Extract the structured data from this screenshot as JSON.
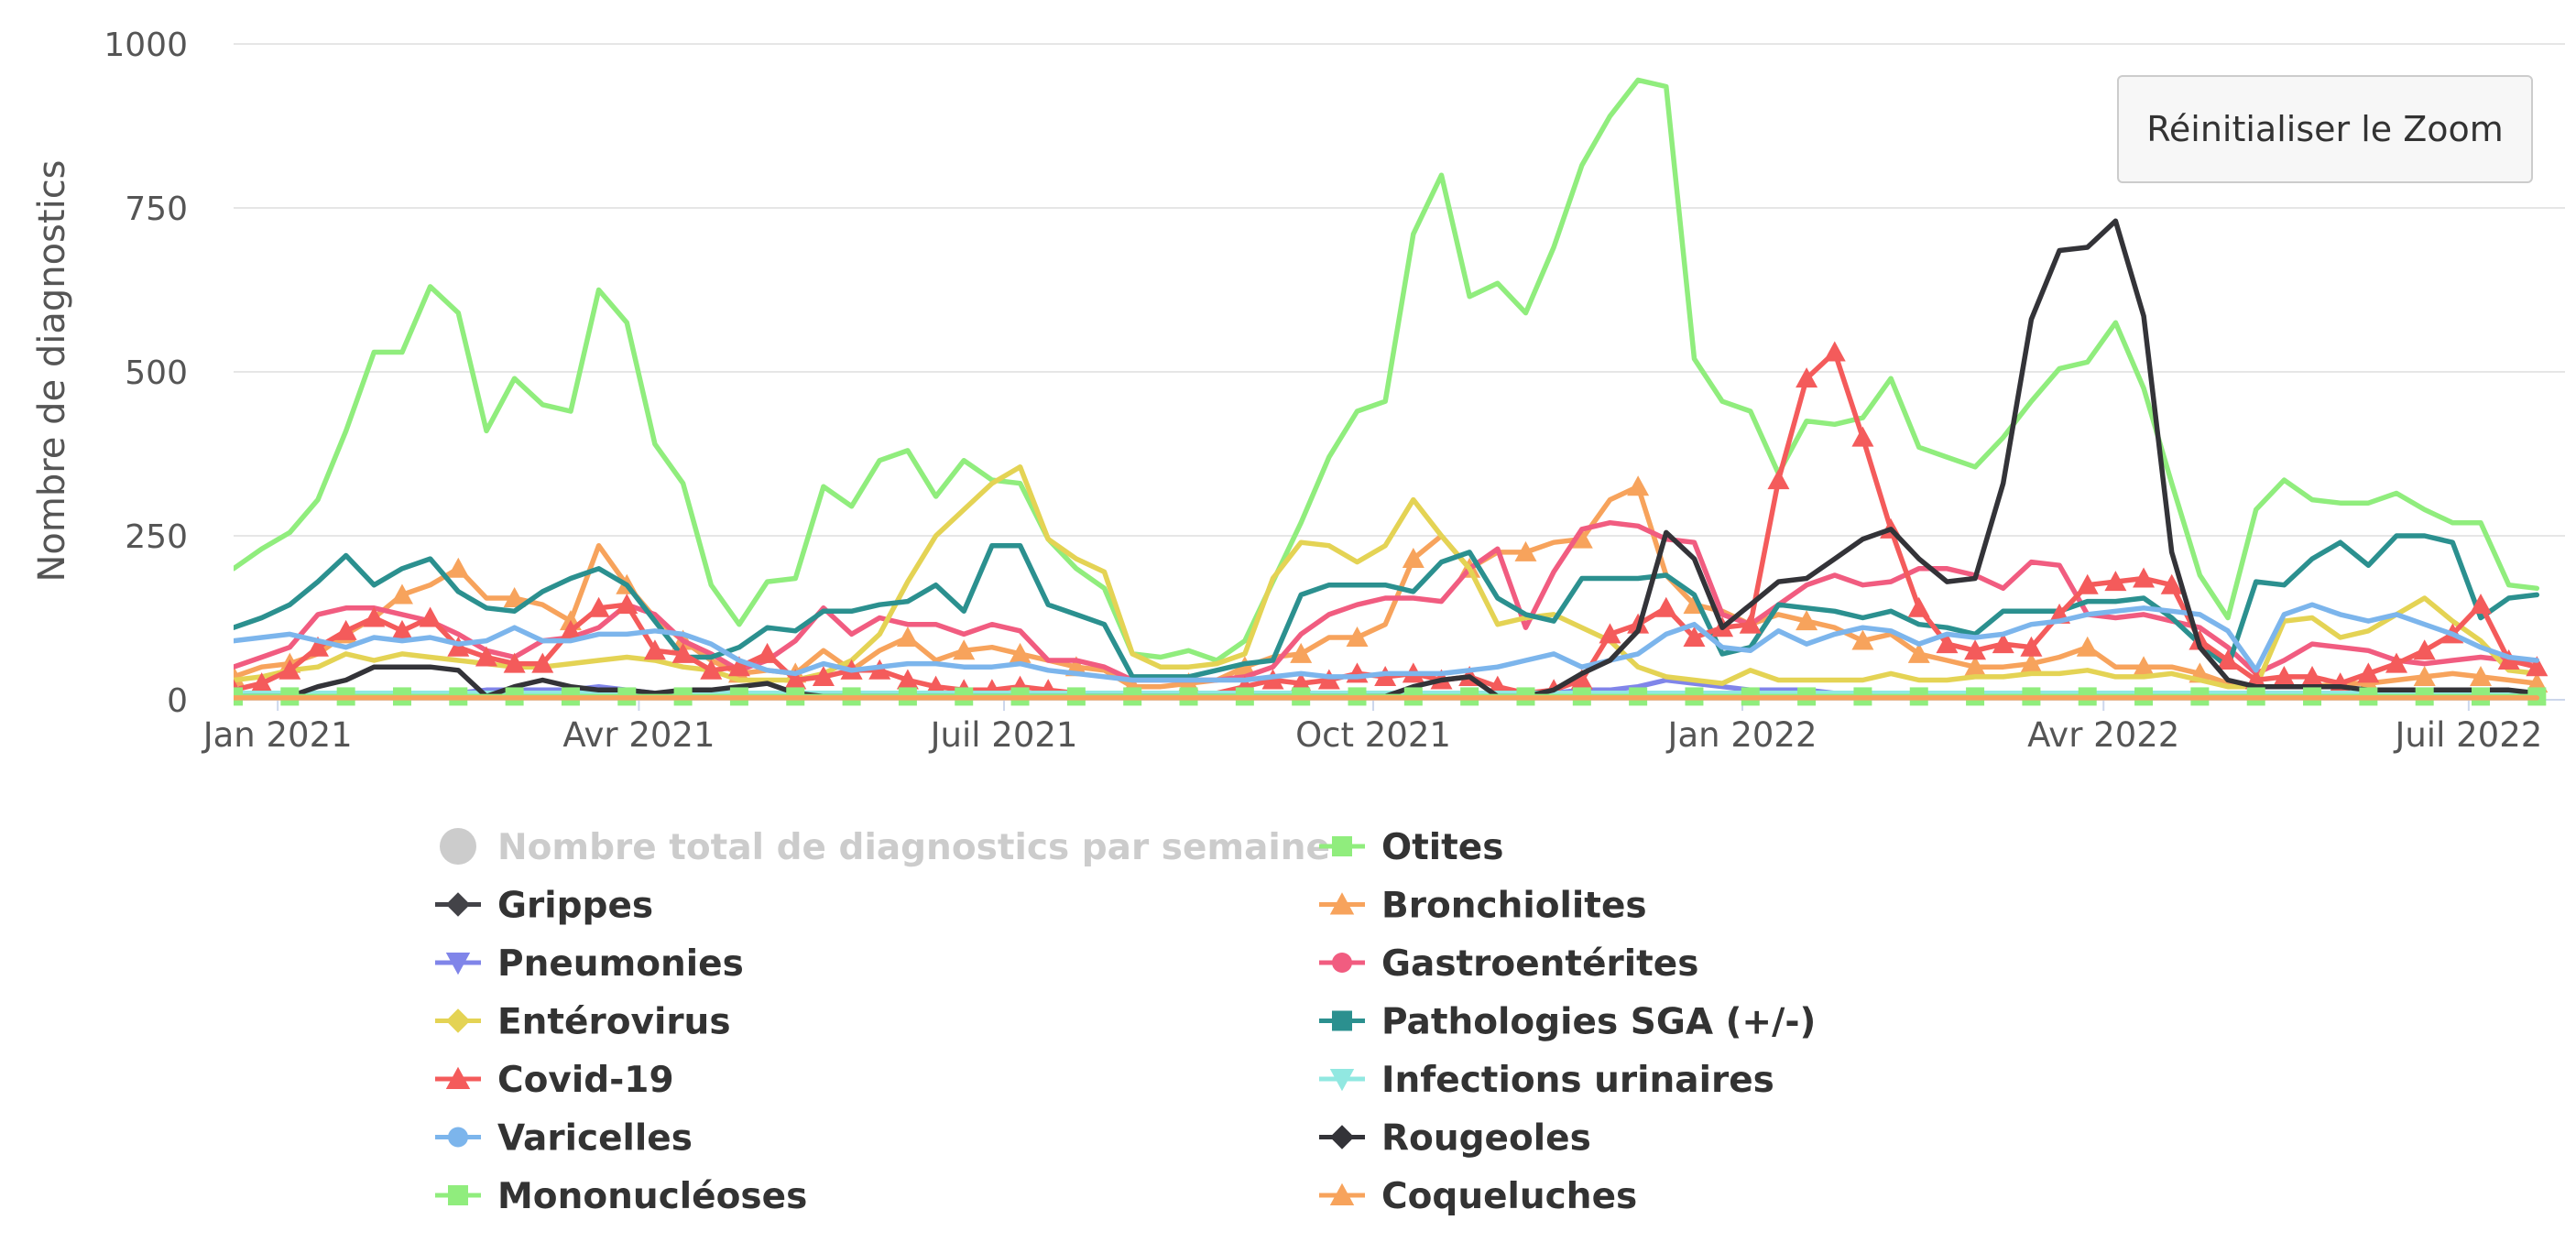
{
  "chart_data": {
    "type": "line",
    "title": "",
    "xlabel": "",
    "ylabel": "Nombre de diagnostics",
    "ylim": [
      0,
      1000
    ],
    "yticks": [
      "0",
      "250",
      "500",
      "750",
      "1000"
    ],
    "xlim": [
      "2020-12-21",
      "2022-07-25"
    ],
    "xticks": [
      {
        "date": "2021-01-01",
        "label": "Jan 2021"
      },
      {
        "date": "2021-04-01",
        "label": "Avr 2021"
      },
      {
        "date": "2021-07-01",
        "label": "Juil 2021"
      },
      {
        "date": "2021-10-01",
        "label": "Oct 2021"
      },
      {
        "date": "2022-01-01",
        "label": "Jan 2022"
      },
      {
        "date": "2022-04-01",
        "label": "Avr 2022"
      },
      {
        "date": "2022-07-01",
        "label": "Juil 2022"
      }
    ],
    "start_date": "2020-12-21",
    "week_step_days": 7,
    "series": [
      {
        "name": "Nombre total de diagnostics par semaine",
        "color": "#cccccc",
        "marker": "circle",
        "visible": false,
        "values": []
      },
      {
        "name": "Otites",
        "color": "#90ed7d",
        "marker": "square",
        "visible": true,
        "values": [
          200,
          230,
          255,
          305,
          410,
          530,
          530,
          630,
          590,
          410,
          490,
          450,
          440,
          625,
          575,
          390,
          330,
          175,
          115,
          180,
          185,
          325,
          295,
          365,
          380,
          310,
          365,
          335,
          330,
          245,
          200,
          170,
          70,
          65,
          75,
          60,
          90,
          180,
          270,
          370,
          440,
          455,
          710,
          800,
          615,
          635,
          590,
          690,
          815,
          890,
          945,
          935,
          520,
          455,
          440,
          345,
          425,
          420,
          430,
          490,
          385,
          370,
          355,
          400,
          455,
          505,
          515,
          575,
          475,
          330,
          190,
          125,
          290,
          335,
          305,
          300,
          300,
          315,
          290,
          270,
          270,
          175,
          170
        ]
      },
      {
        "name": "Grippes",
        "color": "#434348",
        "marker": "diamond",
        "visible": true,
        "values": [
          5,
          5,
          5,
          5,
          5,
          5,
          5,
          5,
          5,
          5,
          5,
          5,
          5,
          5,
          5,
          5,
          5,
          5,
          5,
          5,
          5,
          5,
          5,
          5,
          5,
          5,
          5,
          5,
          5,
          5,
          5,
          5,
          5,
          5,
          5,
          5,
          5,
          5,
          5,
          5,
          5,
          5,
          5,
          5,
          5,
          5,
          5,
          5,
          5,
          5,
          5,
          5,
          5,
          5,
          5,
          5,
          5,
          5,
          5,
          5,
          5,
          5,
          5,
          5,
          5,
          5,
          5,
          5,
          5,
          5,
          5,
          5,
          5,
          5,
          5,
          5,
          5,
          5,
          5,
          5,
          5,
          5,
          5
        ]
      },
      {
        "name": "Bronchiolites",
        "color": "#f7a35c",
        "marker": "triangle",
        "visible": true,
        "values": [
          35,
          50,
          55,
          70,
          100,
          125,
          160,
          175,
          200,
          155,
          155,
          145,
          120,
          235,
          175,
          125,
          90,
          60,
          40,
          45,
          40,
          75,
          45,
          75,
          95,
          60,
          75,
          80,
          70,
          60,
          50,
          45,
          20,
          20,
          25,
          30,
          50,
          65,
          70,
          95,
          95,
          115,
          215,
          250,
          200,
          225,
          225,
          240,
          245,
          305,
          325,
          190,
          145,
          135,
          115,
          130,
          120,
          110,
          90,
          100,
          70,
          60,
          50,
          50,
          55,
          65,
          80,
          50,
          50,
          50,
          40,
          25,
          20,
          20,
          20,
          25,
          25,
          30,
          35,
          40,
          35,
          30,
          25
        ]
      },
      {
        "name": "Pneumonies",
        "color": "#8085e9",
        "marker": "triangle-down",
        "visible": true,
        "values": [
          10,
          10,
          10,
          10,
          10,
          10,
          10,
          10,
          10,
          15,
          15,
          15,
          15,
          20,
          15,
          10,
          10,
          5,
          5,
          5,
          5,
          5,
          5,
          5,
          5,
          5,
          5,
          5,
          5,
          5,
          5,
          5,
          5,
          5,
          5,
          5,
          5,
          5,
          5,
          10,
          10,
          10,
          10,
          10,
          10,
          10,
          10,
          10,
          15,
          15,
          20,
          30,
          25,
          20,
          15,
          15,
          15,
          10,
          10,
          10,
          10,
          10,
          10,
          10,
          10,
          10,
          10,
          10,
          10,
          10,
          10,
          5,
          5,
          5,
          5,
          5,
          5,
          5,
          5,
          5,
          5,
          5,
          5
        ]
      },
      {
        "name": "Gastroentérites",
        "color": "#f15c80",
        "marker": "circle",
        "visible": true,
        "values": [
          50,
          65,
          80,
          130,
          140,
          140,
          130,
          120,
          100,
          75,
          65,
          90,
          95,
          110,
          145,
          130,
          90,
          70,
          45,
          60,
          90,
          140,
          100,
          125,
          115,
          115,
          100,
          115,
          105,
          60,
          60,
          50,
          30,
          30,
          30,
          30,
          35,
          50,
          100,
          130,
          145,
          155,
          155,
          150,
          200,
          230,
          110,
          195,
          260,
          270,
          265,
          245,
          240,
          130,
          115,
          145,
          175,
          190,
          175,
          180,
          200,
          200,
          190,
          170,
          210,
          205,
          130,
          125,
          130,
          120,
          110,
          80,
          40,
          60,
          85,
          80,
          75,
          60,
          55,
          60,
          65,
          60,
          60
        ]
      },
      {
        "name": "Entérovirus",
        "color": "#e4d354",
        "marker": "diamond",
        "visible": true,
        "values": [
          30,
          35,
          45,
          50,
          70,
          60,
          70,
          65,
          60,
          55,
          50,
          50,
          55,
          60,
          65,
          60,
          50,
          45,
          30,
          30,
          30,
          40,
          60,
          100,
          180,
          250,
          290,
          330,
          355,
          245,
          215,
          195,
          70,
          50,
          50,
          55,
          70,
          185,
          240,
          235,
          210,
          235,
          305,
          250,
          200,
          115,
          125,
          130,
          110,
          90,
          50,
          35,
          30,
          25,
          45,
          30,
          30,
          30,
          30,
          40,
          30,
          30,
          35,
          35,
          40,
          40,
          45,
          35,
          35,
          40,
          30,
          20,
          20,
          120,
          125,
          95,
          105,
          130,
          155,
          120,
          90,
          45,
          40
        ]
      },
      {
        "name": "Pathologies SGA (+/-)",
        "color": "#2b908f",
        "marker": "square",
        "visible": true,
        "values": [
          110,
          125,
          145,
          180,
          220,
          175,
          200,
          215,
          165,
          140,
          135,
          165,
          185,
          200,
          175,
          120,
          65,
          65,
          80,
          110,
          105,
          135,
          135,
          145,
          150,
          175,
          135,
          235,
          235,
          145,
          130,
          115,
          35,
          35,
          35,
          45,
          55,
          60,
          160,
          175,
          175,
          175,
          165,
          210,
          225,
          155,
          130,
          120,
          185,
          185,
          185,
          190,
          160,
          70,
          80,
          145,
          140,
          135,
          125,
          135,
          115,
          110,
          100,
          135,
          135,
          135,
          150,
          150,
          155,
          125,
          85,
          50,
          180,
          175,
          215,
          240,
          205,
          250,
          250,
          240,
          125,
          155,
          160
        ]
      },
      {
        "name": "Covid-19",
        "color": "#f45b5b",
        "marker": "triangle",
        "visible": true,
        "values": [
          15,
          25,
          45,
          80,
          105,
          125,
          105,
          125,
          80,
          65,
          55,
          55,
          105,
          140,
          145,
          75,
          70,
          45,
          50,
          70,
          30,
          35,
          45,
          45,
          30,
          20,
          15,
          15,
          20,
          15,
          10,
          10,
          10,
          10,
          10,
          10,
          20,
          30,
          25,
          30,
          40,
          35,
          40,
          30,
          35,
          20,
          10,
          15,
          30,
          100,
          115,
          140,
          95,
          110,
          115,
          335,
          490,
          530,
          400,
          260,
          140,
          85,
          75,
          85,
          80,
          130,
          175,
          180,
          185,
          175,
          90,
          60,
          30,
          35,
          35,
          25,
          40,
          55,
          75,
          100,
          145,
          60,
          50
        ]
      },
      {
        "name": "Infections urinaires",
        "color": "#91e8e1",
        "marker": "triangle-down",
        "visible": true,
        "values": [
          10,
          10,
          10,
          10,
          10,
          10,
          10,
          10,
          10,
          10,
          10,
          10,
          10,
          10,
          10,
          10,
          10,
          10,
          10,
          10,
          10,
          10,
          10,
          10,
          10,
          10,
          10,
          10,
          10,
          10,
          10,
          10,
          10,
          10,
          10,
          10,
          10,
          10,
          10,
          10,
          10,
          10,
          10,
          10,
          10,
          10,
          10,
          10,
          10,
          10,
          10,
          10,
          10,
          10,
          10,
          10,
          10,
          10,
          10,
          10,
          10,
          10,
          10,
          10,
          10,
          10,
          10,
          10,
          10,
          10,
          10,
          10,
          10,
          10,
          10,
          10,
          10,
          10,
          10,
          10,
          10,
          10,
          10
        ]
      },
      {
        "name": "Varicelles",
        "color": "#7cb5ec",
        "marker": "circle",
        "visible": true,
        "values": [
          90,
          95,
          100,
          90,
          80,
          95,
          90,
          95,
          85,
          90,
          110,
          90,
          90,
          100,
          100,
          105,
          100,
          85,
          60,
          45,
          40,
          55,
          45,
          50,
          55,
          55,
          50,
          50,
          55,
          45,
          40,
          35,
          30,
          30,
          30,
          30,
          30,
          35,
          40,
          35,
          35,
          40,
          40,
          40,
          45,
          50,
          60,
          70,
          50,
          60,
          70,
          100,
          115,
          80,
          75,
          105,
          85,
          100,
          110,
          105,
          85,
          100,
          95,
          100,
          115,
          120,
          130,
          135,
          140,
          135,
          130,
          105,
          45,
          130,
          145,
          130,
          120,
          130,
          115,
          100,
          80,
          65,
          60
        ]
      },
      {
        "name": "Rougeoles",
        "color": "#333338",
        "marker": "diamond",
        "visible": true,
        "values": [
          5,
          5,
          5,
          20,
          30,
          50,
          50,
          50,
          45,
          5,
          20,
          30,
          20,
          15,
          15,
          10,
          15,
          15,
          20,
          25,
          10,
          5,
          5,
          5,
          5,
          5,
          5,
          5,
          5,
          5,
          5,
          5,
          5,
          5,
          5,
          5,
          5,
          5,
          5,
          5,
          5,
          5,
          20,
          30,
          35,
          5,
          5,
          15,
          40,
          60,
          105,
          255,
          215,
          110,
          145,
          180,
          185,
          215,
          245,
          260,
          215,
          180,
          185,
          330,
          580,
          685,
          690,
          730,
          585,
          225,
          80,
          30,
          20,
          20,
          20,
          20,
          15,
          15,
          15,
          15,
          15,
          15,
          10
        ]
      },
      {
        "name": "Mononucléoses",
        "color": "#90ed7d",
        "marker": "square",
        "visible": true,
        "values": [
          5,
          5,
          5,
          5,
          5,
          5,
          5,
          5,
          5,
          5,
          5,
          5,
          5,
          5,
          5,
          5,
          5,
          5,
          5,
          5,
          5,
          5,
          5,
          5,
          5,
          5,
          5,
          5,
          5,
          5,
          5,
          5,
          5,
          5,
          5,
          5,
          5,
          5,
          5,
          5,
          5,
          5,
          5,
          5,
          5,
          5,
          5,
          5,
          5,
          5,
          5,
          5,
          5,
          5,
          5,
          5,
          5,
          5,
          5,
          5,
          5,
          5,
          5,
          5,
          5,
          5,
          5,
          5,
          5,
          5,
          5,
          5,
          5,
          5,
          5,
          5,
          5,
          5,
          5,
          5,
          5,
          5,
          5
        ]
      },
      {
        "name": "Coqueluches",
        "color": "#f7a35c",
        "marker": "triangle",
        "visible": true,
        "values": [
          3,
          3,
          3,
          3,
          3,
          3,
          3,
          3,
          3,
          3,
          3,
          3,
          3,
          3,
          3,
          3,
          3,
          3,
          3,
          3,
          3,
          3,
          3,
          3,
          3,
          3,
          3,
          3,
          3,
          3,
          3,
          3,
          3,
          3,
          3,
          3,
          3,
          3,
          3,
          3,
          3,
          3,
          3,
          3,
          3,
          3,
          3,
          3,
          3,
          3,
          3,
          3,
          3,
          3,
          3,
          3,
          3,
          3,
          3,
          3,
          3,
          3,
          3,
          3,
          3,
          3,
          3,
          3,
          3,
          3,
          3,
          3,
          3,
          3,
          3,
          3,
          3,
          3,
          3,
          3,
          3,
          3,
          3
        ]
      }
    ]
  },
  "reset_zoom_label": "Réinitialiser le Zoom"
}
